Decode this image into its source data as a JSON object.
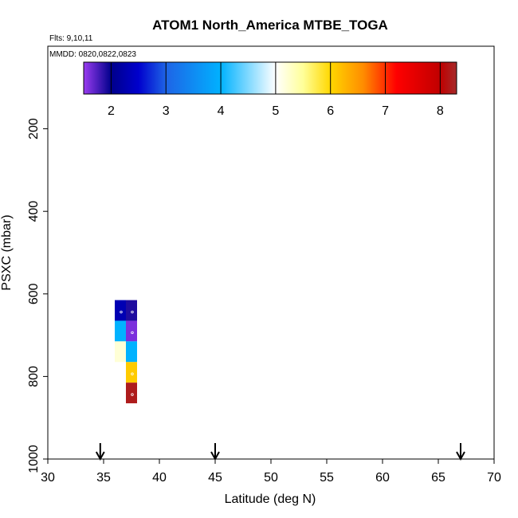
{
  "chart_data": {
    "type": "heatmap",
    "title": "ATOM1 North_America MTBE_TOGA",
    "flights_note": "Flts: 9,10,11",
    "dates_note": "MMDD: 0820,0822,0823",
    "xlabel": "Latitude (deg N)",
    "ylabel": "PSXC (mbar)",
    "xlim": [
      30,
      70
    ],
    "ylim": [
      1000,
      0
    ],
    "x_ticks": [
      "30",
      "35",
      "40",
      "45",
      "50",
      "55",
      "60",
      "65",
      "70"
    ],
    "y_ticks": [
      "200",
      "400",
      "600",
      "800",
      "1000"
    ],
    "colorbar": {
      "range": [
        1.5,
        8.3
      ],
      "ticks": [
        "2",
        "3",
        "4",
        "5",
        "6",
        "7",
        "8"
      ],
      "stops": [
        {
          "v": 1.5,
          "c": "#9a3cf0"
        },
        {
          "v": 2.0,
          "c": "#00008b"
        },
        {
          "v": 2.5,
          "c": "#0000cd"
        },
        {
          "v": 3.0,
          "c": "#1e64e6"
        },
        {
          "v": 4.0,
          "c": "#00b2ff"
        },
        {
          "v": 5.0,
          "c": "#ffffff"
        },
        {
          "v": 5.5,
          "c": "#ffff99"
        },
        {
          "v": 6.0,
          "c": "#ffd700"
        },
        {
          "v": 6.6,
          "c": "#ff8c00"
        },
        {
          "v": 7.2,
          "c": "#ff0000"
        },
        {
          "v": 8.0,
          "c": "#c00000"
        },
        {
          "v": 8.3,
          "c": "#a52a2a"
        }
      ]
    },
    "cells": [
      {
        "lat": 36.5,
        "p": 640,
        "value": 2.3,
        "marker": true
      },
      {
        "lat": 37.5,
        "p": 640,
        "value": 1.9,
        "marker": true
      },
      {
        "lat": 36.5,
        "p": 690,
        "value": 4.0,
        "marker": false
      },
      {
        "lat": 37.5,
        "p": 690,
        "value": 1.6,
        "marker": true
      },
      {
        "lat": 36.5,
        "p": 740,
        "value": 5.2,
        "marker": false
      },
      {
        "lat": 37.5,
        "p": 740,
        "value": 4.0,
        "marker": false
      },
      {
        "lat": 37.5,
        "p": 790,
        "value": 6.1,
        "marker": true
      },
      {
        "lat": 37.5,
        "p": 840,
        "value": 8.2,
        "marker": true
      }
    ],
    "cell_size": {
      "lat": 1,
      "p": 50
    },
    "arrows_lat": [
      34.7,
      45,
      67
    ],
    "grid": false
  }
}
